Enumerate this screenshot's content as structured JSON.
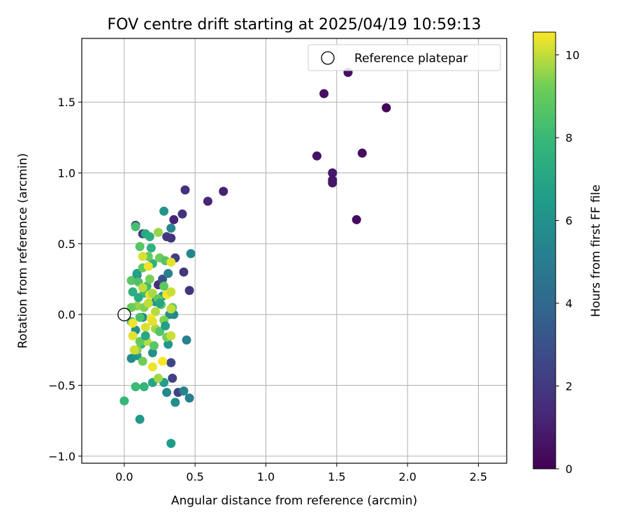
{
  "chart_data": {
    "type": "scatter",
    "title": "FOV centre drift starting at 2025/04/19 10:59:13",
    "xlabel": "Angular distance from reference (arcmin)",
    "ylabel": "Rotation from reference (arcmin)",
    "xlim": [
      -0.3,
      2.7
    ],
    "ylim": [
      -1.05,
      1.95
    ],
    "xticks": [
      "0.0",
      "0.5",
      "1.0",
      "1.5",
      "2.0",
      "2.5"
    ],
    "xtick_values": [
      0,
      0.5,
      1.0,
      1.5,
      2.0,
      2.5
    ],
    "yticks": [
      "−1.0",
      "−0.5",
      "0.0",
      "0.5",
      "1.0",
      "1.5"
    ],
    "ytick_values": [
      -1.0,
      -0.5,
      0,
      0.5,
      1.0,
      1.5
    ],
    "grid": true,
    "legend": {
      "placement": "top-right",
      "entries": [
        "Reference platepar"
      ]
    },
    "reference_point": {
      "x": 0.0,
      "y": 0.0
    },
    "colorbar": {
      "label": "Hours from first FF file",
      "range": [
        0,
        10.55
      ],
      "ticks": [
        "0",
        "2",
        "4",
        "6",
        "8",
        "10"
      ],
      "tick_values": [
        0,
        2,
        4,
        6,
        8,
        10
      ],
      "colormap": "viridis"
    },
    "points": [
      {
        "x": 1.85,
        "y": 1.46,
        "c": 0.1
      },
      {
        "x": 1.58,
        "y": 1.71,
        "c": 0.5
      },
      {
        "x": 1.41,
        "y": 1.56,
        "c": 0.5
      },
      {
        "x": 1.36,
        "y": 1.12,
        "c": 0.6
      },
      {
        "x": 1.68,
        "y": 1.14,
        "c": 0.4
      },
      {
        "x": 1.47,
        "y": 1.0,
        "c": 0.8
      },
      {
        "x": 1.47,
        "y": 0.95,
        "c": 0.7
      },
      {
        "x": 1.47,
        "y": 0.93,
        "c": 0.7
      },
      {
        "x": 1.64,
        "y": 0.67,
        "c": 0.3
      },
      {
        "x": 0.7,
        "y": 0.87,
        "c": 1.1
      },
      {
        "x": 0.59,
        "y": 0.8,
        "c": 1.3
      },
      {
        "x": 0.43,
        "y": 0.88,
        "c": 1.6
      },
      {
        "x": 0.41,
        "y": 0.71,
        "c": 1.7
      },
      {
        "x": 0.35,
        "y": 0.67,
        "c": 1.2
      },
      {
        "x": 0.33,
        "y": 0.54,
        "c": 1.8
      },
      {
        "x": 0.3,
        "y": 0.55,
        "c": 2.0
      },
      {
        "x": 0.42,
        "y": 0.3,
        "c": 1.9
      },
      {
        "x": 0.46,
        "y": 0.17,
        "c": 1.8
      },
      {
        "x": 0.36,
        "y": 0.4,
        "c": 2.1
      },
      {
        "x": 0.24,
        "y": 0.21,
        "c": 1.5
      },
      {
        "x": 0.08,
        "y": 0.63,
        "c": 1.9
      },
      {
        "x": 0.13,
        "y": 0.57,
        "c": 2.0
      },
      {
        "x": 0.09,
        "y": 0.28,
        "c": 2.2
      },
      {
        "x": 0.33,
        "y": -0.34,
        "c": 2.5
      },
      {
        "x": 0.34,
        "y": -0.45,
        "c": 2.3
      },
      {
        "x": 0.38,
        "y": -0.55,
        "c": 2.4
      },
      {
        "x": 0.27,
        "y": 0.25,
        "c": 3.0
      },
      {
        "x": 0.31,
        "y": 0.29,
        "c": 5.2
      },
      {
        "x": 0.33,
        "y": 0.61,
        "c": 5.5
      },
      {
        "x": 0.28,
        "y": 0.73,
        "c": 6.1
      },
      {
        "x": 0.47,
        "y": 0.43,
        "c": 5.4
      },
      {
        "x": 0.44,
        "y": -0.18,
        "c": 5.3
      },
      {
        "x": 0.42,
        "y": -0.54,
        "c": 5.2
      },
      {
        "x": 0.46,
        "y": -0.59,
        "c": 5.1
      },
      {
        "x": 0.36,
        "y": -0.62,
        "c": 5.8
      },
      {
        "x": 0.3,
        "y": -0.55,
        "c": 5.6
      },
      {
        "x": 0.33,
        "y": -0.91,
        "c": 6.5
      },
      {
        "x": 0.11,
        "y": -0.74,
        "c": 6.3
      },
      {
        "x": 0.35,
        "y": 0.0,
        "c": 5.6
      },
      {
        "x": 0.32,
        "y": 0.0,
        "c": 5.9
      },
      {
        "x": 0.05,
        "y": -0.31,
        "c": 5.8
      },
      {
        "x": 0.08,
        "y": -0.11,
        "c": 6.0
      },
      {
        "x": 0.09,
        "y": -0.29,
        "c": 6.2
      },
      {
        "x": 0.13,
        "y": -0.02,
        "c": 5.7
      },
      {
        "x": 0.31,
        "y": -0.21,
        "c": 6.3
      },
      {
        "x": 0.2,
        "y": -0.27,
        "c": 5.9
      },
      {
        "x": 0.22,
        "y": 0.09,
        "c": 6.0
      },
      {
        "x": 0.27,
        "y": 0.13,
        "c": 6.4
      },
      {
        "x": 0.28,
        "y": -0.48,
        "c": 6.6
      },
      {
        "x": 0.2,
        "y": -0.48,
        "c": 7.0
      },
      {
        "x": 0.09,
        "y": 0.29,
        "c": 6.8
      },
      {
        "x": 0.15,
        "y": 0.57,
        "c": 7.2
      },
      {
        "x": 0.18,
        "y": 0.55,
        "c": 7.4
      },
      {
        "x": 0.19,
        "y": 0.47,
        "c": 7.6
      },
      {
        "x": 0.06,
        "y": 0.16,
        "c": 7.5
      },
      {
        "x": 0.0,
        "y": -0.61,
        "c": 7.9
      },
      {
        "x": 0.14,
        "y": -0.51,
        "c": 7.8
      },
      {
        "x": 0.08,
        "y": -0.51,
        "c": 8.1
      },
      {
        "x": 0.05,
        "y": -0.05,
        "c": 7.7
      },
      {
        "x": 0.12,
        "y": -0.21,
        "c": 7.9
      },
      {
        "x": 0.16,
        "y": 0.2,
        "c": 8.0
      },
      {
        "x": 0.2,
        "y": 0.36,
        "c": 7.6
      },
      {
        "x": 0.08,
        "y": 0.62,
        "c": 8.3
      },
      {
        "x": 0.11,
        "y": 0.48,
        "c": 8.7
      },
      {
        "x": 0.13,
        "y": 0.33,
        "c": 8.9
      },
      {
        "x": 0.17,
        "y": 0.41,
        "c": 9.0
      },
      {
        "x": 0.05,
        "y": 0.24,
        "c": 8.8
      },
      {
        "x": 0.18,
        "y": 0.25,
        "c": 9.3
      },
      {
        "x": 0.24,
        "y": 0.58,
        "c": 9.6
      },
      {
        "x": 0.1,
        "y": 0.23,
        "c": 8.5
      },
      {
        "x": 0.14,
        "y": 0.15,
        "c": 8.2
      },
      {
        "x": 0.25,
        "y": 0.4,
        "c": 9.2
      },
      {
        "x": 0.29,
        "y": 0.38,
        "c": 8.6
      },
      {
        "x": 0.28,
        "y": 0.2,
        "c": 8.9
      },
      {
        "x": 0.33,
        "y": 0.37,
        "c": 10.3
      },
      {
        "x": 0.3,
        "y": 0.14,
        "c": 10.5
      },
      {
        "x": 0.33,
        "y": 0.16,
        "c": 10.1
      },
      {
        "x": 0.13,
        "y": 0.41,
        "c": 10.2
      },
      {
        "x": 0.17,
        "y": 0.34,
        "c": 10.4
      },
      {
        "x": 0.13,
        "y": 0.19,
        "c": 10.0
      },
      {
        "x": 0.18,
        "y": 0.14,
        "c": 10.3
      },
      {
        "x": 0.2,
        "y": 0.15,
        "c": 9.8
      },
      {
        "x": 0.09,
        "y": 0.06,
        "c": 9.6
      },
      {
        "x": 0.05,
        "y": 0.05,
        "c": 9.1
      },
      {
        "x": 0.14,
        "y": 0.05,
        "c": 9.4
      },
      {
        "x": 0.22,
        "y": 0.02,
        "c": 9.9
      },
      {
        "x": 0.26,
        "y": 0.07,
        "c": 8.7
      },
      {
        "x": 0.34,
        "y": 0.05,
        "c": 9.0
      },
      {
        "x": 0.33,
        "y": 0.04,
        "c": 10.0
      },
      {
        "x": 0.06,
        "y": -0.06,
        "c": 10.4
      },
      {
        "x": 0.11,
        "y": -0.02,
        "c": 8.4
      },
      {
        "x": 0.15,
        "y": -0.09,
        "c": 10.2
      },
      {
        "x": 0.19,
        "y": -0.03,
        "c": 10.5
      },
      {
        "x": 0.22,
        "y": -0.1,
        "c": 9.7
      },
      {
        "x": 0.25,
        "y": -0.12,
        "c": 8.6
      },
      {
        "x": 0.3,
        "y": -0.16,
        "c": 9.3
      },
      {
        "x": 0.33,
        "y": -0.15,
        "c": 10.1
      },
      {
        "x": 0.06,
        "y": -0.15,
        "c": 10.3
      },
      {
        "x": 0.09,
        "y": -0.25,
        "c": 9.5
      },
      {
        "x": 0.13,
        "y": -0.33,
        "c": 9.2
      },
      {
        "x": 0.16,
        "y": -0.19,
        "c": 9.9
      },
      {
        "x": 0.21,
        "y": -0.22,
        "c": 8.8
      },
      {
        "x": 0.2,
        "y": -0.37,
        "c": 10.4
      },
      {
        "x": 0.24,
        "y": -0.45,
        "c": 9.7
      },
      {
        "x": 0.27,
        "y": -0.33,
        "c": 10.5
      },
      {
        "x": 0.07,
        "y": -0.25,
        "c": 10.1
      },
      {
        "x": 0.11,
        "y": -0.19,
        "c": 9.0
      },
      {
        "x": 0.17,
        "y": 0.08,
        "c": 10.0
      },
      {
        "x": 0.24,
        "y": 0.11,
        "c": 8.9
      },
      {
        "x": 0.28,
        "y": -0.04,
        "c": 9.4
      },
      {
        "x": 0.2,
        "y": -0.05,
        "c": 10.3
      },
      {
        "x": 0.1,
        "y": 0.12,
        "c": 7.3
      },
      {
        "x": 0.15,
        "y": -0.15,
        "c": 7.1
      },
      {
        "x": 0.25,
        "y": 0.08,
        "c": 7.0
      },
      {
        "x": 0.29,
        "y": -0.08,
        "c": 6.7
      }
    ]
  }
}
